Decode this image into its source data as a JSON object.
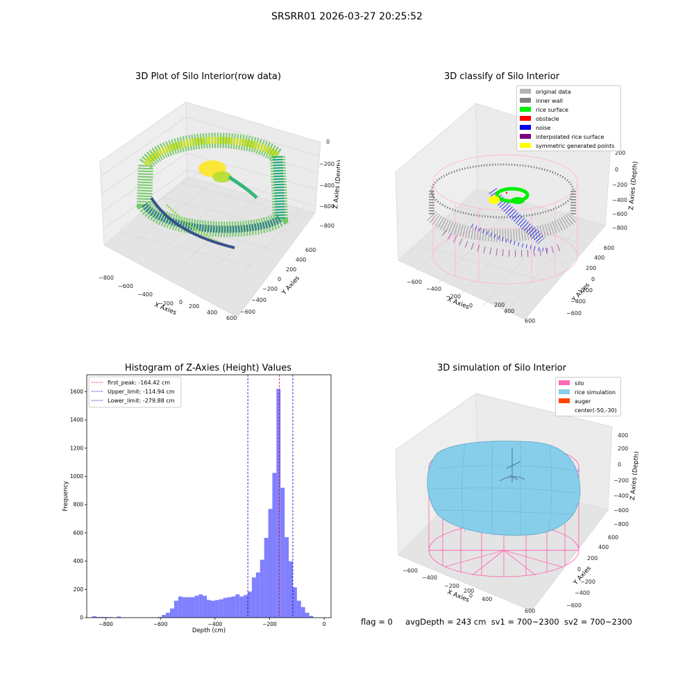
{
  "suptitle": "SRSRR01 2026-03-27 20:25:52",
  "footer": {
    "flag": "flag = 0",
    "avg_depth": "avgDepth = 243 cm",
    "sv1": "sv1 = 700~2300",
    "sv2": "sv2 = 700~2300"
  },
  "colors": {
    "original": "#b3b3b3",
    "inner_wall": "#808080",
    "rice_surface": "#00ee00",
    "obstacle": "#ff0000",
    "noise": "#0000ee",
    "interpolated": "#800080",
    "symmetric": "#ffff00",
    "silo": "#ff69b4",
    "rice_sim": "#87ceeb",
    "auger": "#ff4500",
    "hist_bar": "#5555ff"
  },
  "chart_data": [
    {
      "type": "scatter",
      "subtype": "3d",
      "title": "3D Plot of Silo Interior(row data)",
      "xlabel": "X Axies",
      "ylabel": "Y Axies",
      "zlabel": "Z Axies (Depth)",
      "x_ticks": [
        "−800",
        "−600",
        "−400",
        "−200",
        "0",
        "200",
        "400",
        "600"
      ],
      "y_ticks": [
        "−600",
        "−400",
        "−200",
        "0",
        "200",
        "400",
        "600"
      ],
      "z_ticks": [
        "0",
        "−200",
        "−400",
        "−600",
        "−800"
      ],
      "colormap": "viridis"
    },
    {
      "type": "scatter",
      "subtype": "3d",
      "title": "3D classify of Silo Interior",
      "xlabel": "X Axies",
      "ylabel": "Y Axies",
      "zlabel": "Z Axies (Depth)",
      "x_ticks": [
        "−600",
        "−400",
        "−200",
        "0",
        "200",
        "400",
        "600"
      ],
      "y_ticks": [
        "−600",
        "−400",
        "−200",
        "0",
        "200",
        "400",
        "600"
      ],
      "z_ticks": [
        "200",
        "0",
        "−200",
        "−400",
        "−600",
        "−800"
      ],
      "legend": [
        {
          "label": "original data",
          "color": "#b3b3b3"
        },
        {
          "label": "inner wall",
          "color": "#808080"
        },
        {
          "label": "rice surface",
          "color": "#00ee00"
        },
        {
          "label": "obstacle",
          "color": "#ff0000"
        },
        {
          "label": "noise",
          "color": "#0000ee"
        },
        {
          "label": "interpolated rice surface",
          "color": "#800080"
        },
        {
          "label": "symmetric generated points",
          "color": "#ffff00"
        }
      ]
    },
    {
      "type": "bar",
      "subtype": "histogram",
      "title": "Histogram of Z-Axies (Height) Values",
      "xlabel": "Depth (cm)",
      "ylabel": "Frequency",
      "xlim": [
        -870,
        25
      ],
      "ylim": [
        0,
        1720
      ],
      "x_ticks": [
        -800,
        -600,
        -400,
        -200,
        0
      ],
      "x_tick_labels": [
        "−800",
        "−600",
        "−400",
        "−200",
        "0"
      ],
      "y_ticks": [
        0,
        200,
        400,
        600,
        800,
        1000,
        1200,
        1400,
        1600
      ],
      "bin_width": 15,
      "bins": [
        {
          "x0": -850,
          "y": 10
        },
        {
          "x0": -835,
          "y": 5
        },
        {
          "x0": -820,
          "y": 5
        },
        {
          "x0": -805,
          "y": 4
        },
        {
          "x0": -790,
          "y": 4
        },
        {
          "x0": -760,
          "y": 8
        },
        {
          "x0": -610,
          "y": 5
        },
        {
          "x0": -595,
          "y": 20
        },
        {
          "x0": -580,
          "y": 35
        },
        {
          "x0": -565,
          "y": 65
        },
        {
          "x0": -550,
          "y": 120
        },
        {
          "x0": -535,
          "y": 150
        },
        {
          "x0": -520,
          "y": 145
        },
        {
          "x0": -505,
          "y": 145
        },
        {
          "x0": -490,
          "y": 145
        },
        {
          "x0": -475,
          "y": 155
        },
        {
          "x0": -460,
          "y": 165
        },
        {
          "x0": -445,
          "y": 155
        },
        {
          "x0": -430,
          "y": 125
        },
        {
          "x0": -415,
          "y": 120
        },
        {
          "x0": -400,
          "y": 125
        },
        {
          "x0": -385,
          "y": 130
        },
        {
          "x0": -370,
          "y": 140
        },
        {
          "x0": -355,
          "y": 145
        },
        {
          "x0": -340,
          "y": 150
        },
        {
          "x0": -325,
          "y": 165
        },
        {
          "x0": -310,
          "y": 150
        },
        {
          "x0": -295,
          "y": 160
        },
        {
          "x0": -280,
          "y": 185
        },
        {
          "x0": -265,
          "y": 285
        },
        {
          "x0": -250,
          "y": 320
        },
        {
          "x0": -235,
          "y": 410
        },
        {
          "x0": -220,
          "y": 565
        },
        {
          "x0": -205,
          "y": 770
        },
        {
          "x0": -190,
          "y": 1025
        },
        {
          "x0": -175,
          "y": 1620
        },
        {
          "x0": -160,
          "y": 920
        },
        {
          "x0": -145,
          "y": 570
        },
        {
          "x0": -130,
          "y": 400
        },
        {
          "x0": -115,
          "y": 215
        },
        {
          "x0": -100,
          "y": 120
        },
        {
          "x0": -85,
          "y": 75
        },
        {
          "x0": -70,
          "y": 35
        },
        {
          "x0": -55,
          "y": 12
        }
      ],
      "vlines": [
        {
          "label": "first_peak: -164.42 cm",
          "x": -164.42,
          "color": "#ff0000"
        },
        {
          "label": "Upper_limit: -114.94 cm",
          "x": -114.94,
          "color": "#0000aa"
        },
        {
          "label": "Lower_limit: -279.88 cm",
          "x": -279.88,
          "color": "#0000aa"
        }
      ]
    },
    {
      "type": "other",
      "subtype": "3d-surface",
      "title": "3D simulation of Silo Interior",
      "xlabel": "X Axies",
      "ylabel": "Y Axies",
      "zlabel": "Z Axies (Depth)",
      "x_ticks": [
        "−600",
        "−400",
        "−200",
        "0",
        "200",
        "400",
        "600"
      ],
      "y_ticks": [
        "−600",
        "−400",
        "−200",
        "0",
        "200",
        "400",
        "600"
      ],
      "z_ticks": [
        "400",
        "200",
        "0",
        "−200",
        "−400",
        "−600",
        "−800"
      ],
      "legend": [
        {
          "label": "silo",
          "color": "#ff69b4"
        },
        {
          "label": "rice simulation",
          "color": "#87ceeb"
        },
        {
          "label": "auger",
          "color": "#ff4500"
        },
        {
          "label": "center(-50,-30)",
          "color": ""
        }
      ]
    }
  ]
}
